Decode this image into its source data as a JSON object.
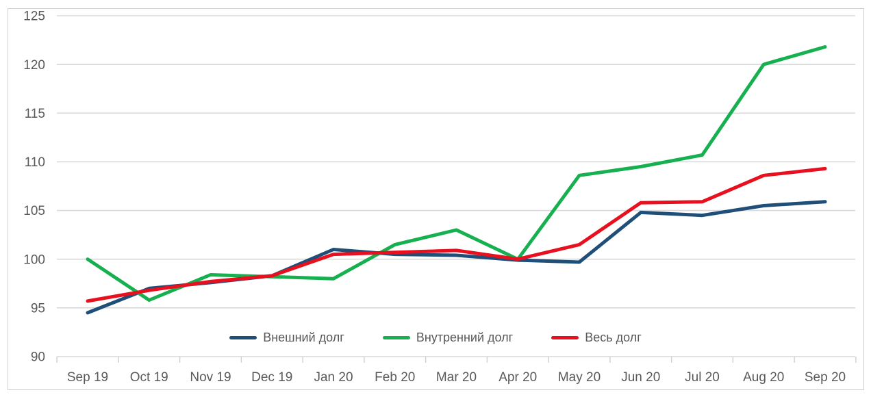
{
  "chart": {
    "background_color": "#ffffff",
    "frame_border_color": "#d0cece",
    "gridline_color": "#d9d9d9",
    "tick_color": "#d0cece",
    "label_color": "#595959"
  },
  "chart_data": {
    "type": "line",
    "title": "",
    "xlabel": "",
    "ylabel": "",
    "ylim": [
      90,
      125
    ],
    "y_ticks": [
      "90",
      "95",
      "100",
      "105",
      "110",
      "115",
      "120",
      "125"
    ],
    "grid": true,
    "legend_position": "bottom-inside",
    "categories": [
      "Sep 19",
      "Oct 19",
      "Nov 19",
      "Dec 19",
      "Jan 20",
      "Feb 20",
      "Mar 20",
      "Apr 20",
      "May 20",
      "Jun 20",
      "Jul 20",
      "Aug 20",
      "Sep 20"
    ],
    "series": [
      {
        "name": "Внешний долг",
        "color": "#1f4e79",
        "values": [
          94.5,
          97.0,
          97.6,
          98.3,
          101.0,
          100.5,
          100.4,
          99.9,
          99.7,
          104.8,
          104.5,
          105.5,
          105.9
        ]
      },
      {
        "name": "Внутренний долг",
        "color": "#17b050",
        "values": [
          100.0,
          95.8,
          98.4,
          98.2,
          98.0,
          101.5,
          103.0,
          100.0,
          108.6,
          109.5,
          110.7,
          120.0,
          121.8
        ]
      },
      {
        "name": "Весь долг",
        "color": "#e8101e",
        "values": [
          95.7,
          96.8,
          97.7,
          98.3,
          100.5,
          100.7,
          100.9,
          100.0,
          101.5,
          105.8,
          105.9,
          108.6,
          109.3
        ]
      }
    ]
  }
}
